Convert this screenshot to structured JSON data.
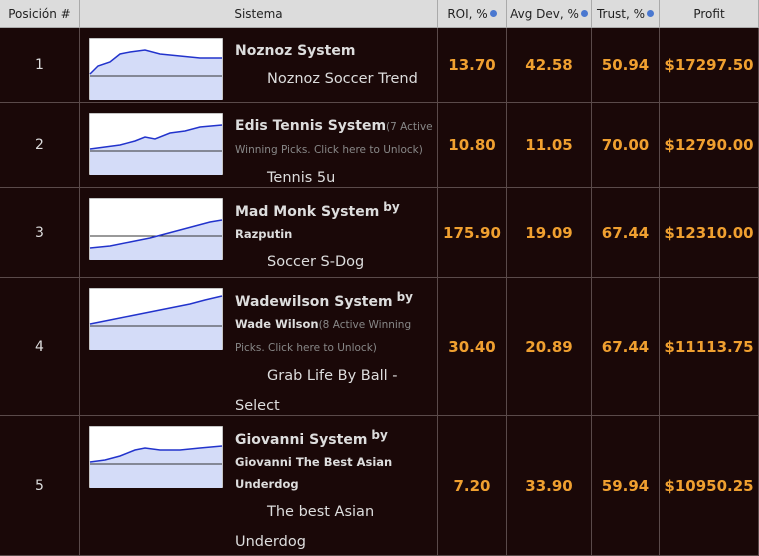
{
  "header": {
    "columns": [
      "Posición #",
      "Sistema",
      "ROI, %",
      "Avg Dev, %",
      "Trust, %",
      "Profit"
    ]
  },
  "rows": [
    {
      "position": "1",
      "system": "Noznoz System",
      "strategy": "Noznoz Soccer Trend",
      "roi": "13.70",
      "avg_dev": "42.58",
      "trust": "50.94",
      "profit": "$17297.50"
    },
    {
      "position": "2",
      "system": "Edis Tennis System",
      "note": "(7 Active Winning Picks. Click here to Unlock)",
      "strategy": "Tennis 5u",
      "roi": "10.80",
      "avg_dev": "11.05",
      "trust": "70.00",
      "profit": "$12790.00"
    },
    {
      "position": "3",
      "system": "Mad Monk System",
      "by": "by",
      "author": "Razputin",
      "strategy": "Soccer S-Dog",
      "roi": "175.90",
      "avg_dev": "19.09",
      "trust": "67.44",
      "profit": "$12310.00"
    },
    {
      "position": "4",
      "system": "Wadewilson System",
      "by": "by",
      "author": "Wade Wilson",
      "note": "(8 Active Winning Picks. Click here to Unlock)",
      "strategy": "Grab Life By Ball - Select",
      "roi": "30.40",
      "avg_dev": "20.89",
      "trust": "67.44",
      "profit": "$11113.75"
    },
    {
      "position": "5",
      "system": "Giovanni System",
      "by": "by",
      "author": "Giovanni The Best Asian Underdog",
      "strategy": "The best Asian Underdog",
      "roi": "7.20",
      "avg_dev": "33.90",
      "trust": "59.94",
      "profit": "$10950.25"
    }
  ]
}
